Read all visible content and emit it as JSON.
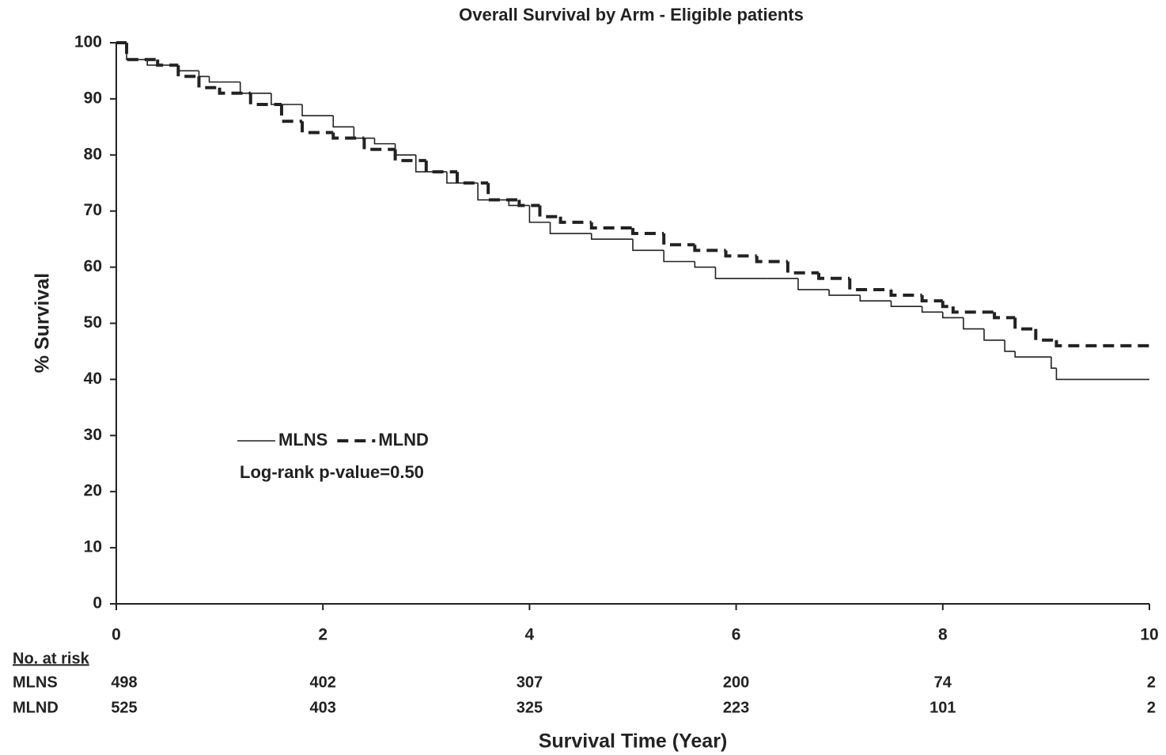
{
  "chart_data": {
    "type": "step",
    "title": "Overall Survival by Arm - Eligible patients",
    "x_label": "Survival Time (Year)",
    "y_label": "% Survival",
    "xlim": [
      0,
      10
    ],
    "ylim": [
      0,
      100
    ],
    "xticks": [
      0,
      2,
      4,
      6,
      8,
      10
    ],
    "yticks": [
      0,
      10,
      20,
      30,
      40,
      50,
      60,
      70,
      80,
      90,
      100
    ],
    "annotation": "Log-rank p-value=0.50",
    "series": [
      {
        "name": "MLNS",
        "color": "#222222",
        "dash": false,
        "x": [
          0,
          0.1,
          0.3,
          0.6,
          0.8,
          0.9,
          1.2,
          1.5,
          1.8,
          2.1,
          2.3,
          2.5,
          2.7,
          2.9,
          3.2,
          3.5,
          3.8,
          4.0,
          4.2,
          4.6,
          5.0,
          5.3,
          5.6,
          5.8,
          6.3,
          6.6,
          6.9,
          7.2,
          7.5,
          7.8,
          8.0,
          8.2,
          8.4,
          8.6,
          8.7,
          9.05,
          9.1,
          10.0
        ],
        "values": [
          100,
          97,
          96,
          95,
          94,
          93,
          91,
          89,
          87,
          85,
          83,
          82,
          80,
          77,
          75,
          72,
          71,
          68,
          66,
          65,
          63,
          61,
          60,
          58,
          58,
          56,
          55,
          54,
          53,
          52,
          51,
          49,
          47,
          45,
          44,
          42,
          40,
          40
        ]
      },
      {
        "name": "MLND",
        "color": "#222222",
        "dash": true,
        "x": [
          0,
          0.1,
          0.4,
          0.6,
          0.8,
          1.0,
          1.3,
          1.6,
          1.8,
          2.1,
          2.4,
          2.7,
          3.0,
          3.3,
          3.6,
          3.9,
          4.1,
          4.3,
          4.6,
          5.0,
          5.3,
          5.6,
          5.9,
          6.2,
          6.5,
          6.8,
          7.1,
          7.5,
          7.8,
          8.0,
          8.1,
          8.5,
          8.7,
          8.9,
          9.1,
          10.0
        ],
        "values": [
          100,
          97,
          96,
          94,
          92,
          91,
          89,
          86,
          84,
          83,
          81,
          79,
          77,
          75,
          72,
          71,
          69,
          68,
          67,
          66,
          64,
          63,
          62,
          61,
          59,
          58,
          56,
          55,
          54,
          53,
          52,
          51,
          49,
          47,
          46,
          46
        ]
      }
    ],
    "risk_table": {
      "title": "No. at risk",
      "rows": [
        {
          "name": "MLNS",
          "values": [
            498,
            402,
            307,
            200,
            74,
            2
          ]
        },
        {
          "name": "MLND",
          "values": [
            525,
            403,
            325,
            223,
            101,
            2
          ]
        }
      ]
    }
  }
}
